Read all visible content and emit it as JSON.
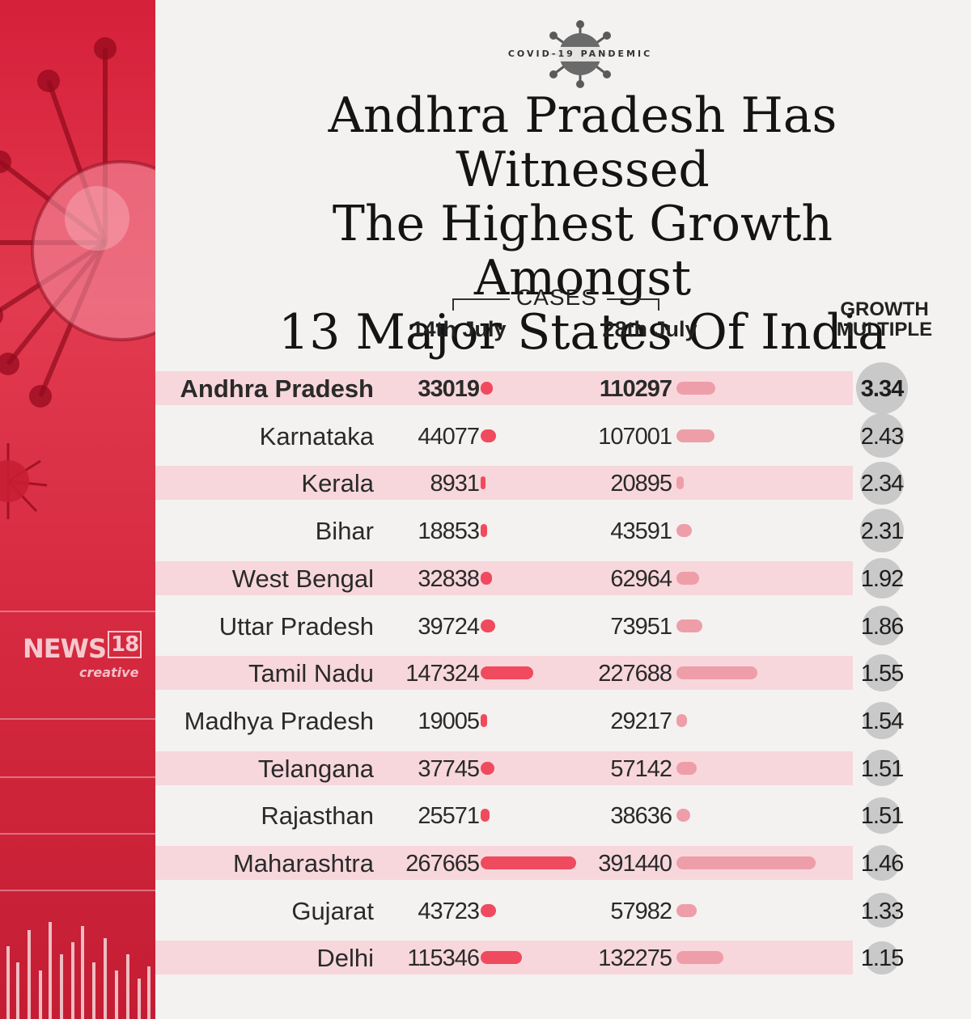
{
  "badge": "COVID-19 PANDEMIC",
  "title_lines": [
    "Andhra Pradesh Has Witnessed",
    "The Highest Growth Amongst",
    "13 Major States Of India"
  ],
  "headers": {
    "cases": "CASES",
    "col_14": "14th July",
    "col_28": "28th July",
    "growth": "GROWTH\nMULTIPLE"
  },
  "logo": {
    "news": "NEWS",
    "num": "18",
    "creative": "creative"
  },
  "colors": {
    "bar_14": "#f04a5e",
    "bar_28": "#ee9ea8",
    "sidebar": "#d6203a",
    "row_shade": "#f7d7dc",
    "growth_circle": "#c9c9c9"
  },
  "chart_data": {
    "type": "table",
    "columns": [
      "14th July",
      "28th July",
      "GROWTH MULTIPLE"
    ],
    "rows": [
      {
        "state": "Andhra Pradesh",
        "jul14": 33019,
        "jul28": 110297,
        "growth": "3.34"
      },
      {
        "state": "Karnataka",
        "jul14": 44077,
        "jul28": 107001,
        "growth": "2.43"
      },
      {
        "state": "Kerala",
        "jul14": 8931,
        "jul28": 20895,
        "growth": "2.34"
      },
      {
        "state": "Bihar",
        "jul14": 18853,
        "jul28": 43591,
        "growth": "2.31"
      },
      {
        "state": "West Bengal",
        "jul14": 32838,
        "jul28": 62964,
        "growth": "1.92"
      },
      {
        "state": "Uttar Pradesh",
        "jul14": 39724,
        "jul28": 73951,
        "growth": "1.86"
      },
      {
        "state": "Tamil Nadu",
        "jul14": 147324,
        "jul28": 227688,
        "growth": "1.55"
      },
      {
        "state": "Madhya Pradesh",
        "jul14": 19005,
        "jul28": 29217,
        "growth": "1.54"
      },
      {
        "state": "Telangana",
        "jul14": 37745,
        "jul28": 57142,
        "growth": "1.51"
      },
      {
        "state": "Rajasthan",
        "jul14": 25571,
        "jul28": 38636,
        "growth": "1.51"
      },
      {
        "state": "Maharashtra",
        "jul14": 267665,
        "jul28": 391440,
        "growth": "1.46"
      },
      {
        "state": "Gujarat",
        "jul14": 43723,
        "jul28": 57982,
        "growth": "1.33"
      },
      {
        "state": "Delhi",
        "jul14": 115346,
        "jul28": 132275,
        "growth": "1.15"
      }
    ]
  }
}
